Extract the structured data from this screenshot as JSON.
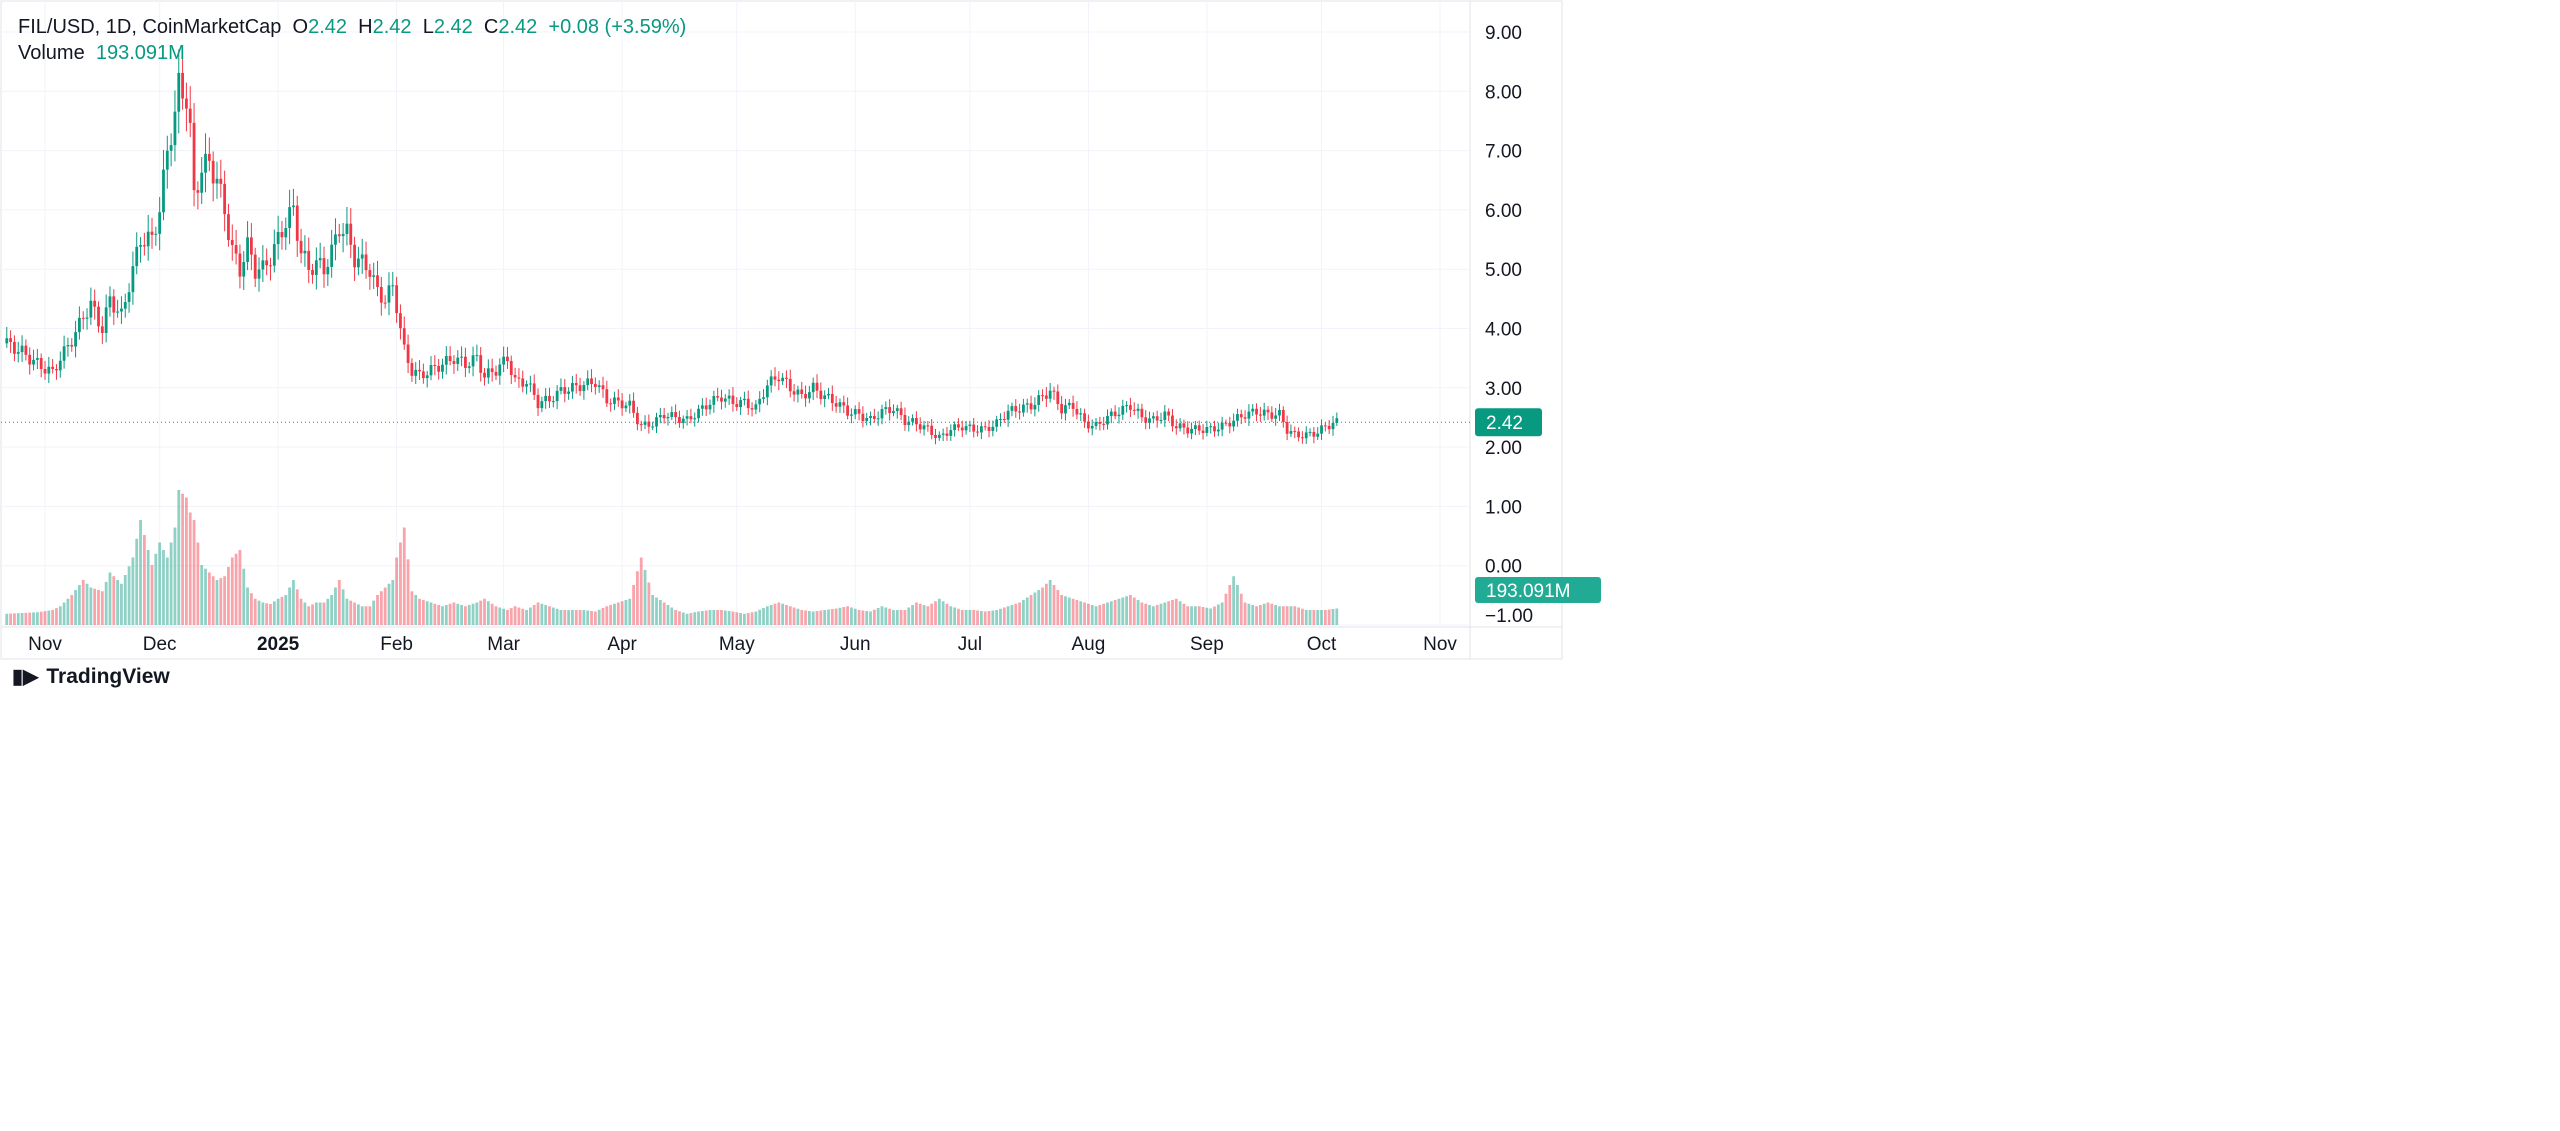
{
  "header": {
    "symbol": "FIL/USD, 1D, CoinMarketCap",
    "open_label": "O",
    "open": "2.42",
    "high_label": "H",
    "high": "2.42",
    "low_label": "L",
    "low": "2.42",
    "close_label": "C",
    "close": "2.42",
    "change": "+0.08 (+3.59%)",
    "volume_label": "Volume",
    "volume": "193.091M"
  },
  "price_tag": "2.42",
  "volume_tag": "193.091M",
  "brand": "TradingView",
  "colors": {
    "up": "#089981",
    "down": "#f23645",
    "grid": "#f0f3fa"
  },
  "chart_data": {
    "type": "candlestick",
    "title": "FIL/USD, 1D, CoinMarketCap",
    "ylim": [
      -1,
      9
    ],
    "y_ticks": [
      "9.00",
      "8.00",
      "7.00",
      "6.00",
      "5.00",
      "4.00",
      "3.00",
      "2.00",
      "1.00",
      "0.00",
      "−1.00"
    ],
    "x_ticks": [
      {
        "label": "Nov",
        "date": "2024-11-01"
      },
      {
        "label": "Dec",
        "date": "2024-12-01"
      },
      {
        "label": "2025",
        "date": "2025-01-01",
        "bold": true
      },
      {
        "label": "Feb",
        "date": "2025-02-01"
      },
      {
        "label": "Mar",
        "date": "2025-03-01"
      },
      {
        "label": "Apr",
        "date": "2025-04-01"
      },
      {
        "label": "May",
        "date": "2025-05-01"
      },
      {
        "label": "Jun",
        "date": "2025-06-01"
      },
      {
        "label": "Jul",
        "date": "2025-07-01"
      },
      {
        "label": "Aug",
        "date": "2025-08-01"
      },
      {
        "label": "Sep",
        "date": "2025-09-01"
      },
      {
        "label": "Oct",
        "date": "2025-10-01"
      },
      {
        "label": "Nov",
        "date": "2025-11-01"
      }
    ],
    "dates": [
      "2024-10-22",
      "2024-10-26",
      "2024-10-30",
      "2024-11-03",
      "2024-11-05",
      "2024-11-08",
      "2024-11-11",
      "2024-11-13",
      "2024-11-16",
      "2024-11-18",
      "2024-11-21",
      "2024-11-24",
      "2024-11-26",
      "2024-11-29",
      "2024-12-01",
      "2024-12-03",
      "2024-12-05",
      "2024-12-06",
      "2024-12-08",
      "2024-12-09",
      "2024-12-10",
      "2024-12-12",
      "2024-12-14",
      "2024-12-16",
      "2024-12-18",
      "2024-12-20",
      "2024-12-22",
      "2024-12-24",
      "2024-12-26",
      "2024-12-28",
      "2024-12-30",
      "2025-01-01",
      "2025-01-03",
      "2025-01-05",
      "2025-01-07",
      "2025-01-09",
      "2025-01-11",
      "2025-01-13",
      "2025-01-15",
      "2025-01-17",
      "2025-01-19",
      "2025-01-21",
      "2025-01-23",
      "2025-01-25",
      "2025-01-27",
      "2025-01-29",
      "2025-01-31",
      "2025-02-01",
      "2025-02-03",
      "2025-02-05",
      "2025-02-07",
      "2025-02-10",
      "2025-02-13",
      "2025-02-16",
      "2025-02-19",
      "2025-02-22",
      "2025-02-24",
      "2025-02-27",
      "2025-03-02",
      "2025-03-04",
      "2025-03-07",
      "2025-03-10",
      "2025-03-13",
      "2025-03-16",
      "2025-03-19",
      "2025-03-22",
      "2025-03-25",
      "2025-03-28",
      "2025-03-31",
      "2025-04-03",
      "2025-04-06",
      "2025-04-09",
      "2025-04-12",
      "2025-04-15",
      "2025-04-18",
      "2025-04-21",
      "2025-04-24",
      "2025-04-27",
      "2025-04-30",
      "2025-05-03",
      "2025-05-06",
      "2025-05-09",
      "2025-05-12",
      "2025-05-15",
      "2025-05-18",
      "2025-05-21",
      "2025-05-24",
      "2025-05-27",
      "2025-05-30",
      "2025-06-02",
      "2025-06-05",
      "2025-06-08",
      "2025-06-11",
      "2025-06-14",
      "2025-06-17",
      "2025-06-20",
      "2025-06-23",
      "2025-06-26",
      "2025-06-29",
      "2025-07-02",
      "2025-07-05",
      "2025-07-08",
      "2025-07-11",
      "2025-07-14",
      "2025-07-17",
      "2025-07-20",
      "2025-07-22",
      "2025-07-25",
      "2025-07-28",
      "2025-07-31",
      "2025-08-03",
      "2025-08-06",
      "2025-08-09",
      "2025-08-12",
      "2025-08-15",
      "2025-08-18",
      "2025-08-21",
      "2025-08-24",
      "2025-08-27",
      "2025-08-30",
      "2025-09-02",
      "2025-09-05",
      "2025-09-08",
      "2025-09-11",
      "2025-09-14",
      "2025-09-17",
      "2025-09-20",
      "2025-09-22",
      "2025-09-24",
      "2025-09-27",
      "2025-09-30",
      "2025-10-02",
      "2025-10-05"
    ],
    "close": [
      3.75,
      3.6,
      3.4,
      3.25,
      3.5,
      3.8,
      4.2,
      4.4,
      4.0,
      4.5,
      4.2,
      5.0,
      5.5,
      5.5,
      6.0,
      7.0,
      7.6,
      8.1,
      7.9,
      7.3,
      6.2,
      6.7,
      6.8,
      6.5,
      6.0,
      5.3,
      5.0,
      5.4,
      5.0,
      5.0,
      5.2,
      5.5,
      5.8,
      6.0,
      5.3,
      5.0,
      5.1,
      5.0,
      5.3,
      5.7,
      5.6,
      5.2,
      5.1,
      5.0,
      4.6,
      4.5,
      4.7,
      4.4,
      3.6,
      3.3,
      3.2,
      3.3,
      3.4,
      3.5,
      3.4,
      3.5,
      3.2,
      3.3,
      3.5,
      3.1,
      3.1,
      2.75,
      2.8,
      2.95,
      3.0,
      3.05,
      3.1,
      2.8,
      2.75,
      2.7,
      2.35,
      2.4,
      2.55,
      2.5,
      2.45,
      2.6,
      2.75,
      2.85,
      2.75,
      2.75,
      2.65,
      3.05,
      3.2,
      3.0,
      2.85,
      3.0,
      2.85,
      2.75,
      2.6,
      2.55,
      2.45,
      2.6,
      2.65,
      2.45,
      2.4,
      2.3,
      2.15,
      2.3,
      2.35,
      2.3,
      2.3,
      2.4,
      2.6,
      2.65,
      2.7,
      2.85,
      2.95,
      2.65,
      2.7,
      2.4,
      2.35,
      2.5,
      2.6,
      2.7,
      2.5,
      2.45,
      2.55,
      2.35,
      2.3,
      2.3,
      2.3,
      2.35,
      2.45,
      2.55,
      2.6,
      2.55,
      2.55,
      2.3,
      2.2,
      2.2,
      2.25,
      2.35,
      2.42
    ],
    "volume_millions": [
      150,
      160,
      170,
      200,
      250,
      400,
      600,
      500,
      450,
      700,
      550,
      900,
      1400,
      800,
      1100,
      900,
      1300,
      1800,
      1700,
      1500,
      1400,
      800,
      700,
      600,
      650,
      900,
      1000,
      500,
      350,
      300,
      280,
      350,
      400,
      600,
      350,
      250,
      300,
      300,
      400,
      600,
      350,
      300,
      250,
      250,
      400,
      500,
      600,
      900,
      1300,
      450,
      350,
      300,
      250,
      300,
      250,
      300,
      350,
      250,
      200,
      250,
      200,
      300,
      250,
      200,
      200,
      200,
      180,
      250,
      300,
      350,
      900,
      400,
      300,
      200,
      150,
      180,
      200,
      200,
      180,
      150,
      180,
      250,
      300,
      250,
      200,
      180,
      200,
      220,
      250,
      200,
      180,
      250,
      200,
      200,
      300,
      250,
      350,
      250,
      200,
      200,
      180,
      200,
      250,
      300,
      400,
      500,
      600,
      400,
      350,
      300,
      250,
      300,
      350,
      400,
      300,
      250,
      300,
      350,
      250,
      250,
      220,
      300,
      650,
      300,
      250,
      300,
      250,
      250,
      250,
      200,
      200,
      200,
      220,
      220,
      193.091
    ]
  }
}
